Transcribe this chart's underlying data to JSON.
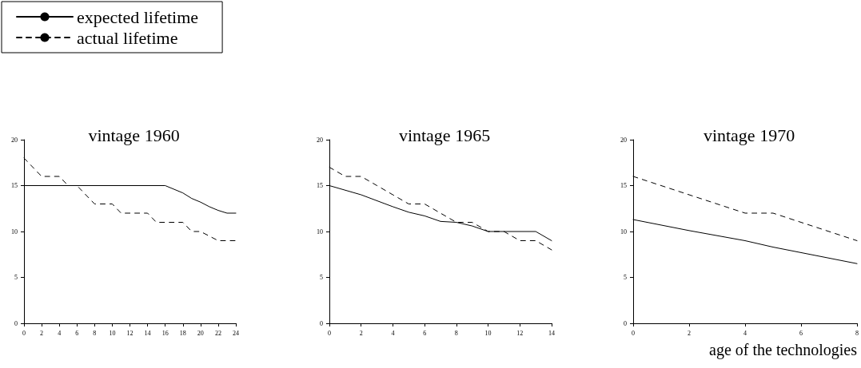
{
  "chart_data": [
    {
      "type": "line",
      "title": "vintage 1960",
      "legend": "top left",
      "marker": "none",
      "xlim": [
        0,
        24
      ],
      "xticks": [
        0,
        2,
        4,
        6,
        8,
        10,
        12,
        14,
        16,
        18,
        20,
        22,
        24
      ],
      "ylim": [
        0,
        20
      ],
      "yticks": [
        0,
        5,
        10,
        15,
        20
      ],
      "series": [
        {
          "name": "expected lifetime",
          "color": "#000000",
          "line_style": "solid",
          "x": [
            0,
            16,
            18,
            19,
            20,
            21,
            22,
            23,
            24
          ],
          "values": [
            15,
            15,
            14.2,
            13.6,
            13.2,
            12.7,
            12.3,
            12,
            12
          ]
        },
        {
          "name": "actual lifetime",
          "color": "#000000",
          "line_style": "dashed",
          "x": [
            0,
            2,
            4,
            5,
            6,
            7,
            8,
            10,
            11,
            14,
            15,
            18,
            19,
            20,
            22,
            24
          ],
          "values": [
            18,
            16,
            16,
            15,
            15,
            14,
            13,
            13,
            12,
            12,
            11,
            11,
            10,
            10,
            9,
            9
          ]
        }
      ]
    },
    {
      "type": "line",
      "title": "vintage 1965",
      "marker": "none",
      "xlim": [
        0,
        14
      ],
      "xticks": [
        0,
        2,
        4,
        6,
        8,
        10,
        12,
        14
      ],
      "ylim": [
        0,
        20
      ],
      "yticks": [
        0,
        5,
        10,
        15,
        20
      ],
      "series": [
        {
          "color": "#000000",
          "line_style": "solid",
          "x": [
            0,
            2,
            4,
            5,
            6,
            7,
            8,
            9,
            10,
            13,
            14
          ],
          "values": [
            15,
            14,
            12.7,
            12.1,
            11.7,
            11.1,
            11,
            10.6,
            10,
            10,
            9
          ]
        },
        {
          "color": "#000000",
          "line_style": "dashed",
          "x": [
            0,
            1,
            2,
            3,
            4,
            5,
            6,
            7,
            8,
            9,
            10,
            11,
            12,
            13,
            14
          ],
          "values": [
            17,
            16,
            16,
            15,
            14,
            13,
            13,
            12,
            11,
            11,
            10,
            10,
            9,
            9,
            8
          ]
        }
      ]
    },
    {
      "type": "line",
      "title": "vintage 1970",
      "xlabel": "age of the technologies",
      "marker": "none",
      "xlim": [
        0,
        8
      ],
      "xticks": [
        0,
        2,
        4,
        6,
        8
      ],
      "ylim": [
        0,
        20
      ],
      "yticks": [
        0,
        5,
        10,
        15,
        20
      ],
      "series": [
        {
          "color": "#000000",
          "line_style": "solid",
          "x": [
            0,
            2,
            4,
            5,
            6,
            8
          ],
          "values": [
            11.3,
            10.1,
            9,
            8.3,
            7.7,
            6.5
          ]
        },
        {
          "color": "#000000",
          "line_style": "dashed",
          "x": [
            0,
            4,
            5,
            8
          ],
          "values": [
            16,
            12,
            12,
            9
          ]
        }
      ]
    }
  ]
}
